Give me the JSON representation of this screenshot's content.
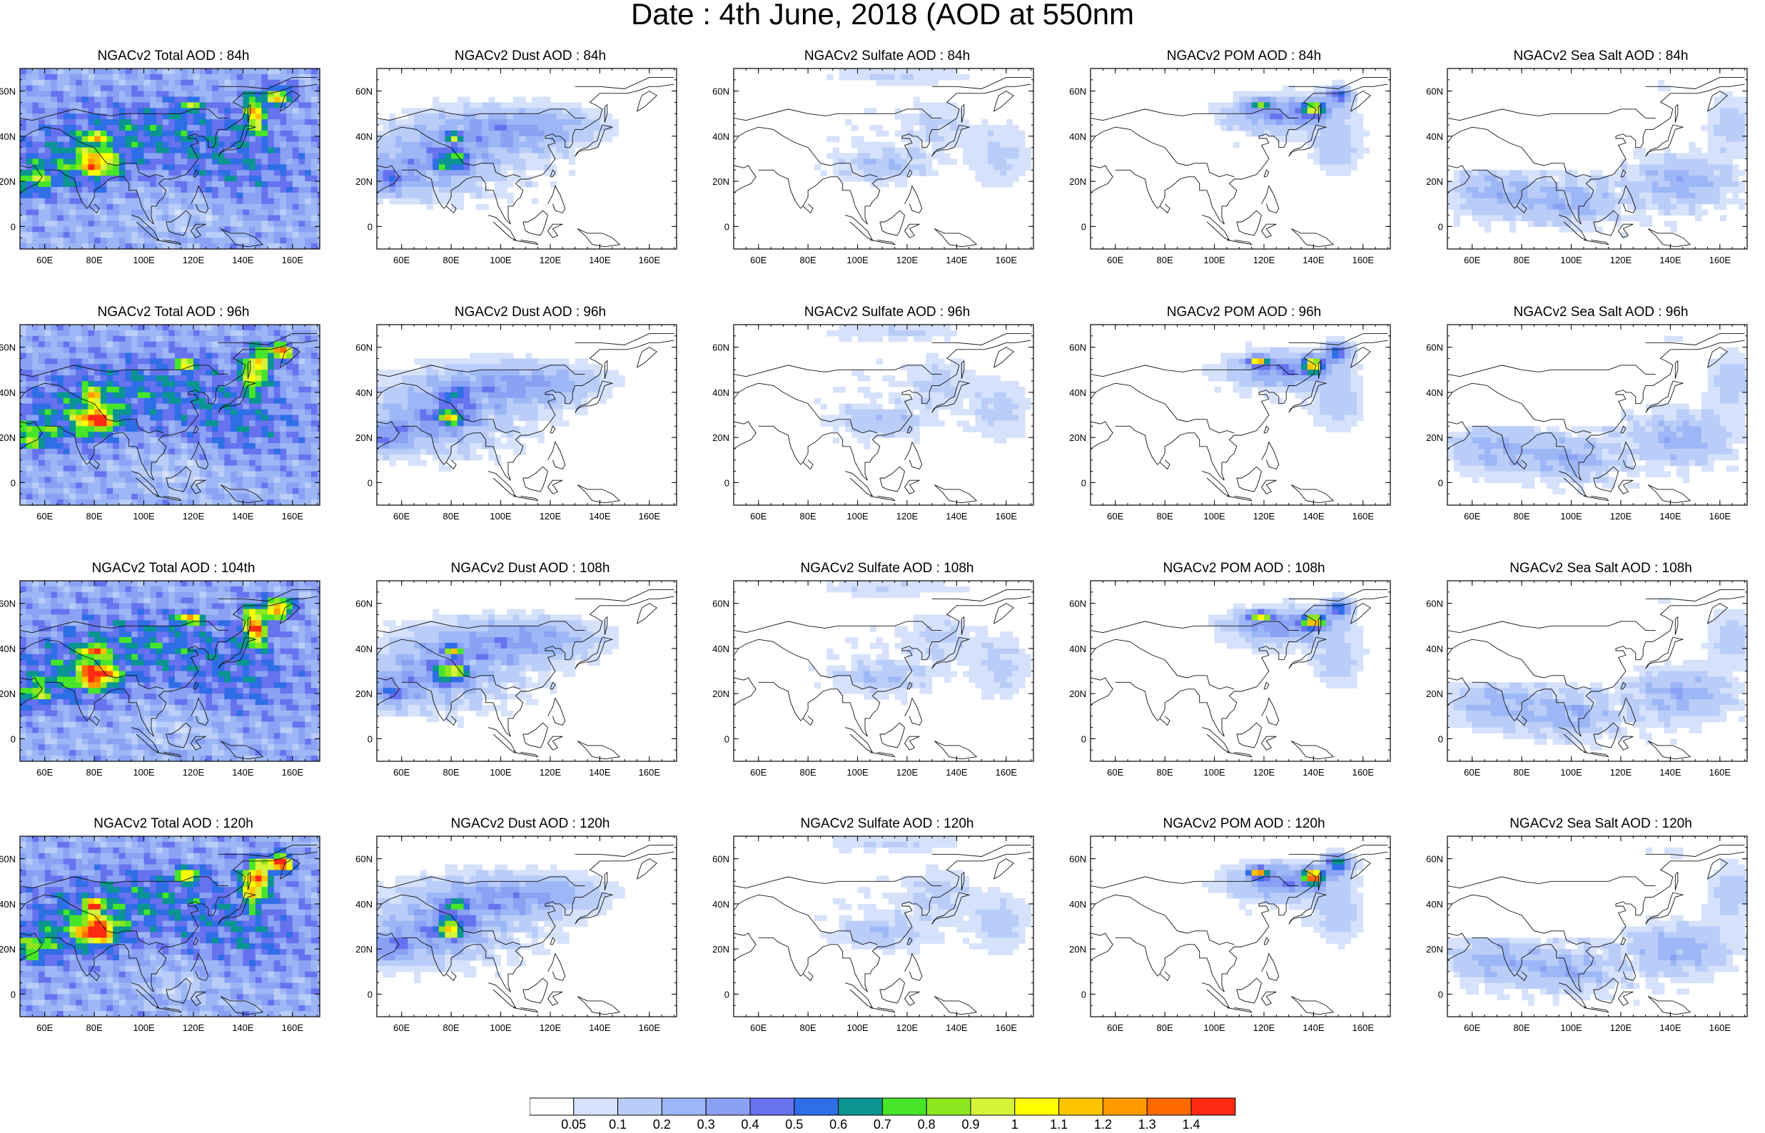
{
  "title": "Date : 4th June, 2018 (AOD at 550nm",
  "x_tick_labels": [
    "60E",
    "80E",
    "100E",
    "120E",
    "140E",
    "160E"
  ],
  "y_tick_labels": [
    "0",
    "20N",
    "40N",
    "60N"
  ],
  "map_extent": {
    "lon": [
      50,
      171
    ],
    "lat": [
      -10,
      70
    ]
  },
  "panels": [
    {
      "title": "NGACv2 Total AOD : 84h",
      "field": "total",
      "intensity": 0.85
    },
    {
      "title": "NGACv2 Dust AOD : 84h",
      "field": "dust",
      "intensity": 0.8
    },
    {
      "title": "NGACv2 Sulfate AOD : 84h",
      "field": "sulfate",
      "intensity": 0.7
    },
    {
      "title": "NGACv2 POM AOD : 84h",
      "field": "pom",
      "intensity": 0.85
    },
    {
      "title": "NGACv2 Sea Salt AOD : 84h",
      "field": "seasalt",
      "intensity": 0.8
    },
    {
      "title": "NGACv2 Total AOD : 96h",
      "field": "total",
      "intensity": 1.0
    },
    {
      "title": "NGACv2 Dust AOD : 96h",
      "field": "dust",
      "intensity": 0.85
    },
    {
      "title": "NGACv2 Sulfate AOD : 96h",
      "field": "sulfate",
      "intensity": 0.8
    },
    {
      "title": "NGACv2 POM AOD : 96h",
      "field": "pom",
      "intensity": 0.95
    },
    {
      "title": "NGACv2 Sea Salt AOD : 96h",
      "field": "seasalt",
      "intensity": 0.85
    },
    {
      "title": "NGACv2 Total AOD : 104th",
      "field": "total",
      "intensity": 1.15
    },
    {
      "title": "NGACv2 Dust AOD : 108h",
      "field": "dust",
      "intensity": 1.0
    },
    {
      "title": "NGACv2 Sulfate AOD : 108h",
      "field": "sulfate",
      "intensity": 0.8
    },
    {
      "title": "NGACv2 POM AOD : 108h",
      "field": "pom",
      "intensity": 1.0
    },
    {
      "title": "NGACv2 Sea Salt AOD : 108h",
      "field": "seasalt",
      "intensity": 0.9
    },
    {
      "title": "NGACv2 Total AOD : 120h",
      "field": "total",
      "intensity": 1.3
    },
    {
      "title": "NGACv2 Dust AOD : 120h",
      "field": "dust",
      "intensity": 1.1
    },
    {
      "title": "NGACv2 Sulfate AOD : 120h",
      "field": "sulfate",
      "intensity": 0.9
    },
    {
      "title": "NGACv2 POM AOD : 120h",
      "field": "pom",
      "intensity": 1.2
    },
    {
      "title": "NGACv2 Sea Salt  AOD : 120h",
      "field": "seasalt",
      "intensity": 0.9
    }
  ],
  "colorbar": {
    "labels": [
      "0.05",
      "0.1",
      "0.2",
      "0.3",
      "0.4",
      "0.5",
      "0.6",
      "0.7",
      "0.8",
      "0.9",
      "1",
      "1.1",
      "1.2",
      "1.3",
      "1.4"
    ],
    "colors": [
      "#ffffff",
      "#d6e2fb",
      "#bacdf8",
      "#9db7f6",
      "#8aa1f4",
      "#6672ee",
      "#2e6ee6",
      "#0a9592",
      "#46e52a",
      "#8ee61e",
      "#d6f33a",
      "#ffff00",
      "#ffc400",
      "#ff9b00",
      "#ff6a00",
      "#ff2a14"
    ]
  }
}
